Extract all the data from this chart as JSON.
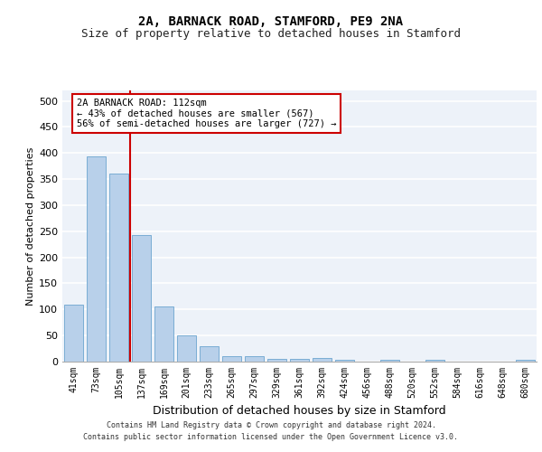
{
  "title_line1": "2A, BARNACK ROAD, STAMFORD, PE9 2NA",
  "title_line2": "Size of property relative to detached houses in Stamford",
  "xlabel": "Distribution of detached houses by size in Stamford",
  "ylabel": "Number of detached properties",
  "bar_color": "#b8d0ea",
  "bar_edge_color": "#7aadd4",
  "categories": [
    "41sqm",
    "73sqm",
    "105sqm",
    "137sqm",
    "169sqm",
    "201sqm",
    "233sqm",
    "265sqm",
    "297sqm",
    "329sqm",
    "361sqm",
    "392sqm",
    "424sqm",
    "456sqm",
    "488sqm",
    "520sqm",
    "552sqm",
    "584sqm",
    "616sqm",
    "648sqm",
    "680sqm"
  ],
  "values": [
    110,
    393,
    360,
    243,
    105,
    50,
    30,
    10,
    10,
    6,
    6,
    7,
    3,
    0,
    4,
    0,
    4,
    0,
    0,
    0,
    4
  ],
  "ylim": [
    0,
    520
  ],
  "yticks": [
    0,
    50,
    100,
    150,
    200,
    250,
    300,
    350,
    400,
    450,
    500
  ],
  "vline_color": "#cc0000",
  "vline_x": 2.5,
  "annotation_text": "2A BARNACK ROAD: 112sqm\n← 43% of detached houses are smaller (567)\n56% of semi-detached houses are larger (727) →",
  "annotation_box_color": "#ffffff",
  "annotation_box_edge": "#cc0000",
  "footer_line1": "Contains HM Land Registry data © Crown copyright and database right 2024.",
  "footer_line2": "Contains public sector information licensed under the Open Government Licence v3.0.",
  "background_color": "#edf2f9",
  "grid_color": "#ffffff",
  "title_fontsize": 10,
  "subtitle_fontsize": 9,
  "tick_fontsize": 7,
  "ylabel_fontsize": 8,
  "xlabel_fontsize": 9,
  "footer_fontsize": 6
}
